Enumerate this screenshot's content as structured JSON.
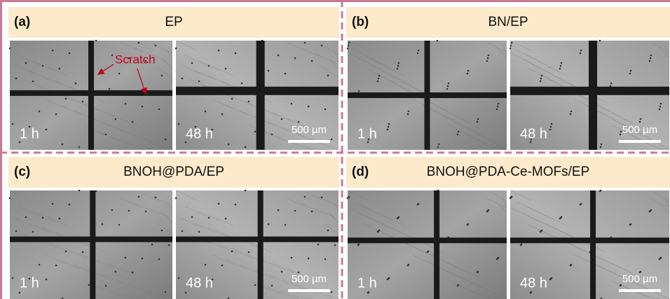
{
  "panels": [
    {
      "label": "(a)",
      "title": "EP",
      "annotation": "Scratch",
      "images": [
        {
          "time": "1 h"
        },
        {
          "time": "48 h",
          "scale_bar": "500 µm"
        }
      ]
    },
    {
      "label": "(b)",
      "title": "BN/EP",
      "images": [
        {
          "time": "1 h"
        },
        {
          "time": "48 h",
          "scale_bar": "500 µm"
        }
      ]
    },
    {
      "label": "(c)",
      "title": "BNOH@PDA/EP",
      "images": [
        {
          "time": "1 h"
        },
        {
          "time": "48 h",
          "scale_bar": "500 µm"
        }
      ]
    },
    {
      "label": "(d)",
      "title": "BNOH@PDA-Ce-MOFs/EP",
      "images": [
        {
          "time": "1 h"
        },
        {
          "time": "48 h",
          "scale_bar": "500 µm"
        }
      ]
    }
  ]
}
